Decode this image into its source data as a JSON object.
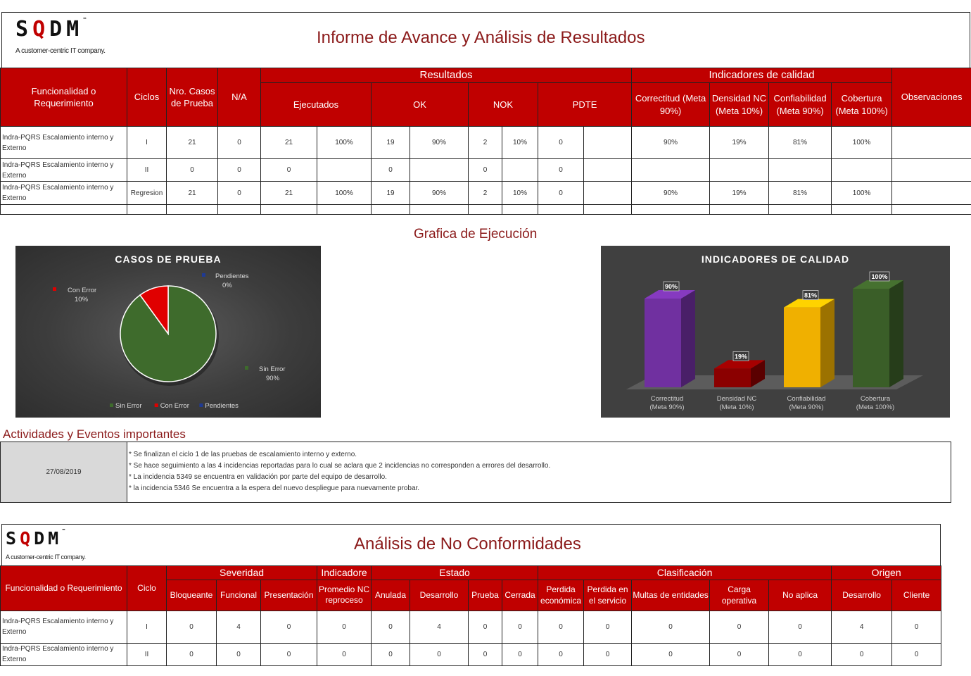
{
  "brand": {
    "logo": "SQDM",
    "tagline": "A customer-centric IT company."
  },
  "report": {
    "title": "Informe de Avance y Análisis de Resultados"
  },
  "results_table": {
    "headers": {
      "funcionalidad": "Funcionalidad o Requerimiento",
      "ciclos": "Ciclos",
      "nro_casos": "Nro. Casos de  Prueba",
      "na": "N/A",
      "resultados": "Resultados",
      "ejecutados": "Ejecutados",
      "ok": "OK",
      "nok": "NOK",
      "pdte": "PDTE",
      "indicadores": "Indicadores de calidad",
      "correctitud": "Correctitud (Meta 90%)",
      "densidad": "Densidad NC (Meta 10%)",
      "confiabilidad": "Confiabilidad (Meta 90%)",
      "cobertura": "Cobertura (Meta 100%)",
      "observaciones": "Observaciones"
    },
    "rows": [
      {
        "funcionalidad": "Indra-PQRS Escalamiento interno y Externo",
        "ciclo": "I",
        "casos": "21",
        "na": "0",
        "ejecutados": "21",
        "ejecutados_pct": "100%",
        "ok": "19",
        "ok_pct": "90%",
        "nok": "2",
        "nok_pct": "10%",
        "pdte": "0",
        "pdte_pct": "",
        "correctitud": "90%",
        "densidad": "19%",
        "confiabilidad": "81%",
        "cobertura": "100%",
        "observaciones": ""
      },
      {
        "funcionalidad": "Indra-PQRS Escalamiento interno y Externo",
        "ciclo": "II",
        "casos": "0",
        "na": "0",
        "ejecutados": "0",
        "ejecutados_pct": "",
        "ok": "0",
        "ok_pct": "",
        "nok": "0",
        "nok_pct": "",
        "pdte": "0",
        "pdte_pct": "",
        "correctitud": "",
        "densidad": "",
        "confiabilidad": "",
        "cobertura": "",
        "observaciones": ""
      },
      {
        "funcionalidad": "Indra-PQRS Escalamiento interno y Externo",
        "ciclo": "Regresion",
        "casos": "21",
        "na": "0",
        "ejecutados": "21",
        "ejecutados_pct": "100%",
        "ok": "19",
        "ok_pct": "90%",
        "nok": "2",
        "nok_pct": "10%",
        "pdte": "0",
        "pdte_pct": "",
        "correctitud": "90%",
        "densidad": "19%",
        "confiabilidad": "81%",
        "cobertura": "100%",
        "observaciones": ""
      }
    ]
  },
  "charts_section": {
    "title": "Grafica de Ejecución"
  },
  "chart_data": [
    {
      "type": "pie",
      "title": "CASOS  DE  PRUEBA",
      "labels": [
        "Sin Error",
        "Con Error",
        "Pendientes"
      ],
      "values": [
        90,
        10,
        0
      ],
      "value_labels": [
        "90%",
        "10%",
        "0%"
      ],
      "colors": [
        "#3e6b2c",
        "#e00000",
        "#1f3a93"
      ],
      "legend_position": "bottom"
    },
    {
      "type": "bar",
      "title": "INDICADORES  DE  CALIDAD",
      "categories": [
        "Correctitud\n(Meta 90%)",
        "Densidad NC\n(Meta 10%)",
        "Confiabilidad\n(Meta 90%)",
        "Cobertura\n(Meta 100%)"
      ],
      "values": [
        90,
        19,
        81,
        100
      ],
      "value_labels": [
        "90%",
        "19%",
        "81%",
        "100%"
      ],
      "colors": [
        "#7030a0",
        "#8b0000",
        "#f0b000",
        "#3a5e28"
      ],
      "ylim": [
        0,
        100
      ],
      "grid": false,
      "legend": false
    }
  ],
  "activities": {
    "title": "Actividades y Eventos importantes",
    "date": "27/08/2019",
    "notes": [
      "* Se finalizan el ciclo 1 de las pruebas de escalamiento interno y externo.",
      "* Se hace seguimiento a las 4 incidencias reportadas para lo cual se aclara que 2 incidencias no corresponden a errores del desarrollo.",
      "* La incidencia 5349 se encuentra en validación por parte del equipo de desarrollo.",
      "* la incidencia 5346 Se encuentra a la espera del nuevo despliegue para nuevamente probar."
    ]
  },
  "nc_report": {
    "title": "Análisis de No Conformidades"
  },
  "nc_table": {
    "headers": {
      "funcionalidad": "Funcionalidad o Requerimiento",
      "ciclo": "Ciclo",
      "severidad": "Severidad",
      "bloqueante": "Bloqueante",
      "funcional": "Funcional",
      "presentacion": "Presentación",
      "indicador": "Indicadore",
      "promedio": "Promedio NC reproceso",
      "estado": "Estado",
      "anulada": "Anulada",
      "desarrollo": "Desarrollo",
      "prueba": "Prueba",
      "cerrada": "Cerrada",
      "clasificacion": "Clasificación",
      "perdida_economica": "Perdida económica",
      "perdida_servicio": "Perdida en el servicio",
      "multas": "Multas de entidades",
      "carga": "Carga operativa",
      "no_aplica": "No aplica",
      "origen": "Origen",
      "origen_desarrollo": "Desarrollo",
      "cliente": "Cliente"
    },
    "rows": [
      {
        "funcionalidad": "Indra-PQRS Escalamiento interno y Externo",
        "ciclo": "I",
        "bloqueante": "0",
        "funcional": "4",
        "presentacion": "0",
        "promedio": "0",
        "anulada": "0",
        "desarrollo": "4",
        "prueba": "0",
        "cerrada": "0",
        "perdida_economica": "0",
        "perdida_servicio": "0",
        "multas": "0",
        "carga": "0",
        "no_aplica": "0",
        "origen_desarrollo": "4",
        "cliente": "0"
      },
      {
        "funcionalidad": "Indra-PQRS Escalamiento interno y Externo",
        "ciclo": "II",
        "bloqueante": "0",
        "funcional": "0",
        "presentacion": "0",
        "promedio": "0",
        "anulada": "0",
        "desarrollo": "0",
        "prueba": "0",
        "cerrada": "0",
        "perdida_economica": "0",
        "perdida_servicio": "0",
        "multas": "0",
        "carga": "0",
        "no_aplica": "0",
        "origen_desarrollo": "0",
        "cliente": "0"
      }
    ]
  }
}
